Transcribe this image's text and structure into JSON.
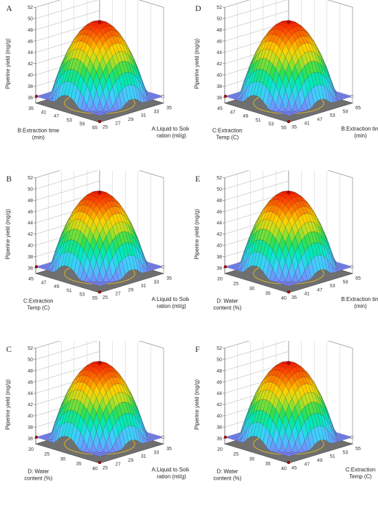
{
  "chart_data": [
    {
      "type": "surface3d",
      "panel_label": "A",
      "zlabel": "Piperine yield (mg/g)",
      "zticks": [
        "36",
        "38",
        "40",
        "42",
        "44",
        "46",
        "48",
        "50",
        "52"
      ],
      "z_range": [
        35,
        52
      ],
      "left_axis": {
        "label_lines": [
          "B:Extraction time",
          "(min)"
        ],
        "ticks": [
          "35",
          "41",
          "47",
          "53",
          "59",
          "65"
        ]
      },
      "right_axis": {
        "label_lines": [
          "A:Liquid to Solid",
          "ration (ml/g)"
        ],
        "ticks": [
          "25",
          "27",
          "29",
          "31",
          "33",
          "35"
        ]
      },
      "peak_yield": 49.5
    },
    {
      "type": "surface3d",
      "panel_label": "D",
      "zlabel": "Piperine yield (mg/g)",
      "zticks": [
        "36",
        "38",
        "40",
        "42",
        "44",
        "46",
        "48",
        "50",
        "52"
      ],
      "z_range": [
        35,
        52
      ],
      "left_axis": {
        "label_lines": [
          "C:Extraction",
          "Temp (C)"
        ],
        "ticks": [
          "45",
          "47",
          "49",
          "51",
          "53",
          "55"
        ]
      },
      "right_axis": {
        "label_lines": [
          "B:Extraction tim",
          "(min)"
        ],
        "ticks": [
          "35",
          "41",
          "47",
          "53",
          "59",
          "65"
        ]
      },
      "peak_yield": 49.5
    },
    {
      "type": "surface3d",
      "panel_label": "B",
      "zlabel": "Piperine yield (mg/g)",
      "zticks": [
        "36",
        "38",
        "40",
        "42",
        "44",
        "46",
        "48",
        "50",
        "52"
      ],
      "z_range": [
        35,
        52
      ],
      "left_axis": {
        "label_lines": [
          "C:Extraction",
          "Temp (C)"
        ],
        "ticks": [
          "45",
          "47",
          "49",
          "51",
          "53",
          "55"
        ]
      },
      "right_axis": {
        "label_lines": [
          "A:Liquid to Solid",
          "ration (ml/g)"
        ],
        "ticks": [
          "25",
          "27",
          "29",
          "31",
          "33",
          "35"
        ]
      },
      "peak_yield": 49.5
    },
    {
      "type": "surface3d",
      "panel_label": "E",
      "zlabel": "Piperine yield (mg/g)",
      "zticks": [
        "36",
        "38",
        "40",
        "42",
        "44",
        "46",
        "48",
        "50",
        "52"
      ],
      "z_range": [
        35,
        52
      ],
      "left_axis": {
        "label_lines": [
          "D: Water",
          "content (%)"
        ],
        "ticks": [
          "20",
          "25",
          "30",
          "35",
          "40"
        ]
      },
      "right_axis": {
        "label_lines": [
          "B:Extraction tim",
          "(min)"
        ],
        "ticks": [
          "35",
          "41",
          "47",
          "53",
          "59",
          "65"
        ]
      },
      "peak_yield": 49.5
    },
    {
      "type": "surface3d",
      "panel_label": "C",
      "zlabel": "Piperine yield (mg/g)",
      "zticks": [
        "36",
        "38",
        "40",
        "42",
        "44",
        "46",
        "48",
        "50",
        "52"
      ],
      "z_range": [
        35,
        52
      ],
      "left_axis": {
        "label_lines": [
          "D: Water",
          "content (%)"
        ],
        "ticks": [
          "20",
          "25",
          "30",
          "35",
          "40"
        ]
      },
      "right_axis": {
        "label_lines": [
          "A:Liquid to Solid",
          "ration (ml/g)"
        ],
        "ticks": [
          "25",
          "27",
          "29",
          "31",
          "33",
          "35"
        ]
      },
      "peak_yield": 49.5
    },
    {
      "type": "surface3d",
      "panel_label": "F",
      "zlabel": "Piperine yield (mg/g)",
      "zticks": [
        "36",
        "38",
        "40",
        "42",
        "44",
        "46",
        "48",
        "50",
        "52"
      ],
      "z_range": [
        35,
        52
      ],
      "left_axis": {
        "label_lines": [
          "D: Water",
          "content (%)"
        ],
        "ticks": [
          "20",
          "25",
          "30",
          "35",
          "40"
        ]
      },
      "right_axis": {
        "label_lines": [
          "C:Extraction",
          "Temp (C)"
        ],
        "ticks": [
          "45",
          "47",
          "49",
          "51",
          "53",
          "55"
        ]
      },
      "peak_yield": 49.5
    }
  ],
  "colors": {
    "surface_low": "#7f7fff",
    "surface_mid": "#00e080",
    "surface_high": "#ff2000",
    "floor": "#6f6f6f",
    "contour": "#e8c020",
    "point": "#c00000"
  }
}
